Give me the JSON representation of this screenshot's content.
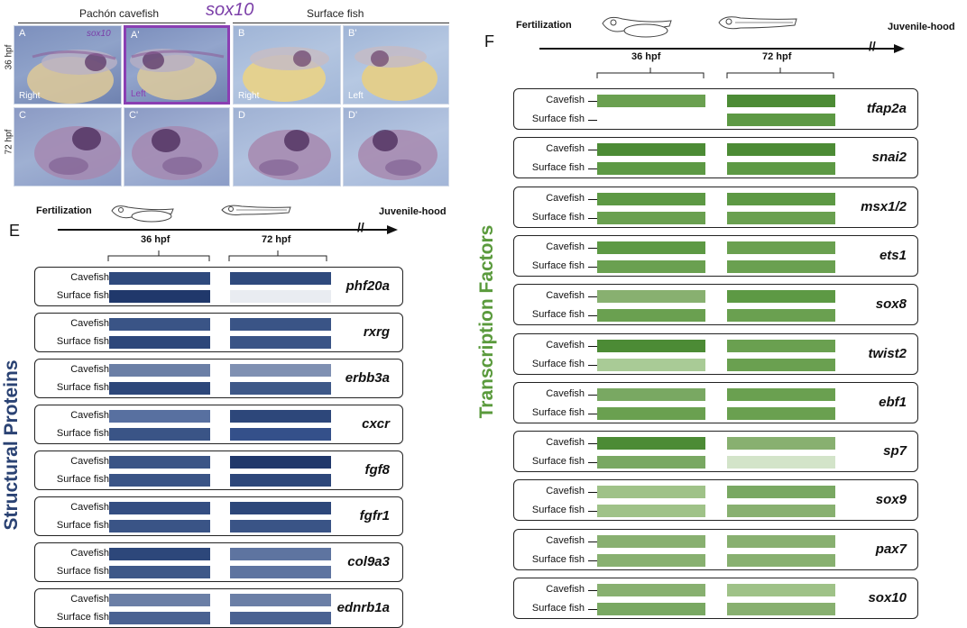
{
  "photo_panel": {
    "header_left": "Pachón cavefish",
    "header_right": "Surface fish",
    "gene": "sox10",
    "rows": [
      "36 hpf",
      "72 hpf"
    ],
    "tiles": [
      {
        "label": "A",
        "side": "Right",
        "gene": "sox10"
      },
      {
        "label": "A'",
        "side": "Left"
      },
      {
        "label": "B",
        "side": "Right"
      },
      {
        "label": "B'",
        "side": "Left"
      },
      {
        "label": "C"
      },
      {
        "label": "C'"
      },
      {
        "label": "D"
      },
      {
        "label": "D'"
      }
    ]
  },
  "panel_e": {
    "letter": "E",
    "title": "Structural Proteins",
    "title_color": "#2a4273",
    "timeline": {
      "start": "Fertilization",
      "end": "Juvenile-hood",
      "t1": "36 hpf",
      "t2": "72 hpf"
    },
    "row_labels": {
      "cave": "Cavefish",
      "surface": "Surface fish"
    },
    "genes": [
      {
        "name": "phf20a",
        "cave36": "#2f4a7d",
        "cave72": "#2f4a7d",
        "surf36": "#20386b",
        "surf72": "#e9ecf1"
      },
      {
        "name": "rxrg",
        "cave36": "#3a5486",
        "cave72": "#3a5486",
        "surf36": "#2d477a",
        "surf72": "#3a5486"
      },
      {
        "name": "erbb3a",
        "cave36": "#6b7fa6",
        "cave72": "#7f90b2",
        "surf36": "#2d477a",
        "surf72": "#3e5888"
      },
      {
        "name": "cxcr",
        "cave36": "#5870a0",
        "cave72": "#2d477a",
        "surf36": "#3a5486",
        "surf72": "#34508a"
      },
      {
        "name": "fgf8",
        "cave36": "#3a5486",
        "cave72": "#20386b",
        "surf36": "#3a5486",
        "surf72": "#2d477a"
      },
      {
        "name": "fgfr1",
        "cave36": "#344e82",
        "cave72": "#2d477a",
        "surf36": "#3a5486",
        "surf72": "#3a5486"
      },
      {
        "name": "col9a3",
        "cave36": "#2d477a",
        "cave72": "#5e74a0",
        "surf36": "#3e5888",
        "surf72": "#5e74a0"
      },
      {
        "name": "ednrb1a",
        "cave36": "#6b7fa6",
        "cave72": "#6b7fa6",
        "surf36": "#4a6292",
        "surf72": "#4a6292"
      }
    ]
  },
  "panel_f": {
    "letter": "F",
    "title": "Transcription Factors",
    "title_color": "#5a9a3c",
    "timeline": {
      "start": "Fertilization",
      "end": "Juvenile-hood",
      "t1": "36 hpf",
      "t2": "72 hpf"
    },
    "row_labels": {
      "cave": "Cavefish",
      "surface": "Surface fish"
    },
    "genes": [
      {
        "name": "tfap2a",
        "cave36": "#6aa050",
        "cave72": "#4c8b35",
        "surf36": "",
        "surf72": "#5d9944"
      },
      {
        "name": "snai2",
        "cave36": "#4c8b35",
        "cave72": "#4c8b35",
        "surf36": "#5d9944",
        "surf72": "#5d9944"
      },
      {
        "name": "msx1/2",
        "cave36": "#5d9944",
        "cave72": "#5d9944",
        "surf36": "#6aa050",
        "surf72": "#6aa050"
      },
      {
        "name": "ets1",
        "cave36": "#5d9944",
        "cave72": "#6aa050",
        "surf36": "#6aa050",
        "surf72": "#6aa050"
      },
      {
        "name": "sox8",
        "cave36": "#88b070",
        "cave72": "#5d9944",
        "surf36": "#6aa050",
        "surf72": "#6aa050"
      },
      {
        "name": "twist2",
        "cave36": "#4c8b35",
        "cave72": "#6aa050",
        "surf36": "#a9cb96",
        "surf72": "#6aa050"
      },
      {
        "name": "ebf1",
        "cave36": "#79a862",
        "cave72": "#6aa050",
        "surf36": "#6aa050",
        "surf72": "#6aa050"
      },
      {
        "name": "sp7",
        "cave36": "#4c8b35",
        "cave72": "#88b070",
        "surf36": "#79a862",
        "surf72": "#d3e4c9"
      },
      {
        "name": "sox9",
        "cave36": "#9fc288",
        "cave72": "#79a862",
        "surf36": "#9fc288",
        "surf72": "#88b070"
      },
      {
        "name": "pax7",
        "cave36": "#88b070",
        "cave72": "#88b070",
        "surf36": "#88b070",
        "surf72": "#88b070"
      },
      {
        "name": "sox10",
        "cave36": "#88b070",
        "cave72": "#9fc288",
        "surf36": "#79a862",
        "surf72": "#88b070"
      }
    ]
  }
}
